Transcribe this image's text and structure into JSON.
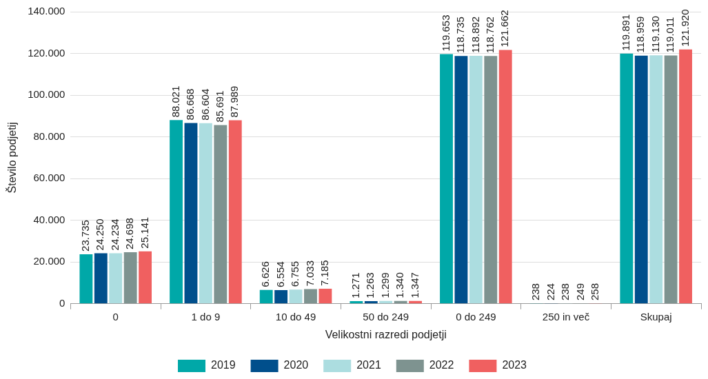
{
  "chart_data": {
    "type": "bar",
    "xlabel": "Velikostni razredi podjetji",
    "ylabel": "Število podjetij",
    "categories": [
      "0",
      "1 do 9",
      "10 do 49",
      "50 do 249",
      "0 do 249",
      "250 in več",
      "Skupaj"
    ],
    "series": [
      {
        "name": "2019",
        "color": "#00a8a8",
        "values": [
          23735,
          88021,
          6626,
          1271,
          119653,
          238,
          119891
        ],
        "value_labels": [
          "23.735",
          "88.021",
          "6.626",
          "1.271",
          "119.653",
          "238",
          "119.891"
        ]
      },
      {
        "name": "2020",
        "color": "#004f8c",
        "values": [
          24250,
          86668,
          6554,
          1263,
          118735,
          224,
          118959
        ],
        "value_labels": [
          "24.250",
          "86.668",
          "6.554",
          "1.263",
          "118.735",
          "224",
          "118.959"
        ]
      },
      {
        "name": "2021",
        "color": "#acdde0",
        "values": [
          24234,
          86604,
          6755,
          1299,
          118892,
          238,
          119130
        ],
        "value_labels": [
          "24.234",
          "86.604",
          "6.755",
          "1.299",
          "118.892",
          "238",
          "119.130"
        ]
      },
      {
        "name": "2022",
        "color": "#7e9390",
        "values": [
          24698,
          85691,
          7033,
          1340,
          118762,
          249,
          119011
        ],
        "value_labels": [
          "24.698",
          "85.691",
          "7.033",
          "1.340",
          "118.762",
          "249",
          "119.011"
        ]
      },
      {
        "name": "2023",
        "color": "#f06060",
        "values": [
          25141,
          87989,
          7185,
          1347,
          121662,
          258,
          121920
        ],
        "value_labels": [
          "25.141",
          "87.989",
          "7.185",
          "1.347",
          "121.662",
          "258",
          "121.920"
        ]
      }
    ],
    "ylim": [
      0,
      140000
    ],
    "yticks": [
      {
        "value": 0,
        "label": "0"
      },
      {
        "value": 20000,
        "label": "20.000"
      },
      {
        "value": 40000,
        "label": "40.000"
      },
      {
        "value": 60000,
        "label": "60.000"
      },
      {
        "value": 80000,
        "label": "80.000"
      },
      {
        "value": 100000,
        "label": "100.000"
      },
      {
        "value": 120000,
        "label": "120.000"
      },
      {
        "value": 140000,
        "label": "140.000"
      }
    ],
    "grid": "y",
    "legend": "bottom"
  }
}
